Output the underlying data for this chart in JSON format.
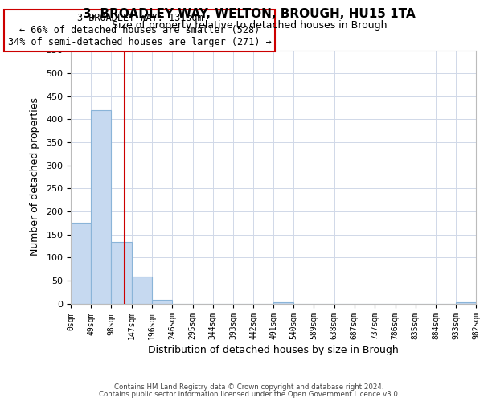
{
  "title": "3, BROADLEY WAY, WELTON, BROUGH, HU15 1TA",
  "subtitle": "Size of property relative to detached houses in Brough",
  "xlabel": "Distribution of detached houses by size in Brough",
  "ylabel": "Number of detached properties",
  "bar_edges": [
    0,
    49,
    98,
    147,
    196,
    246,
    295,
    344,
    393,
    442,
    491,
    540,
    589,
    638,
    687,
    737,
    786,
    835,
    884,
    933,
    982
  ],
  "bar_heights": [
    175,
    420,
    133,
    58,
    7,
    0,
    0,
    0,
    0,
    0,
    3,
    0,
    0,
    0,
    0,
    0,
    0,
    0,
    0,
    3
  ],
  "bar_color": "#c6d9f0",
  "bar_edge_color": "#8ab4d8",
  "property_line_x": 131,
  "property_line_color": "#cc0000",
  "ylim": [
    0,
    550
  ],
  "xlim": [
    0,
    982
  ],
  "annotation_title": "3 BROADLEY WAY: 131sqm",
  "annotation_line1": "← 66% of detached houses are smaller (528)",
  "annotation_line2": "34% of semi-detached houses are larger (271) →",
  "annotation_box_color": "#ffffff",
  "annotation_box_edge": "#cc0000",
  "tick_labels": [
    "0sqm",
    "49sqm",
    "98sqm",
    "147sqm",
    "196sqm",
    "246sqm",
    "295sqm",
    "344sqm",
    "393sqm",
    "442sqm",
    "491sqm",
    "540sqm",
    "589sqm",
    "638sqm",
    "687sqm",
    "737sqm",
    "786sqm",
    "835sqm",
    "884sqm",
    "933sqm",
    "982sqm"
  ],
  "footer_line1": "Contains HM Land Registry data © Crown copyright and database right 2024.",
  "footer_line2": "Contains public sector information licensed under the Open Government Licence v3.0.",
  "background_color": "#ffffff",
  "grid_color": "#d0d8e8"
}
